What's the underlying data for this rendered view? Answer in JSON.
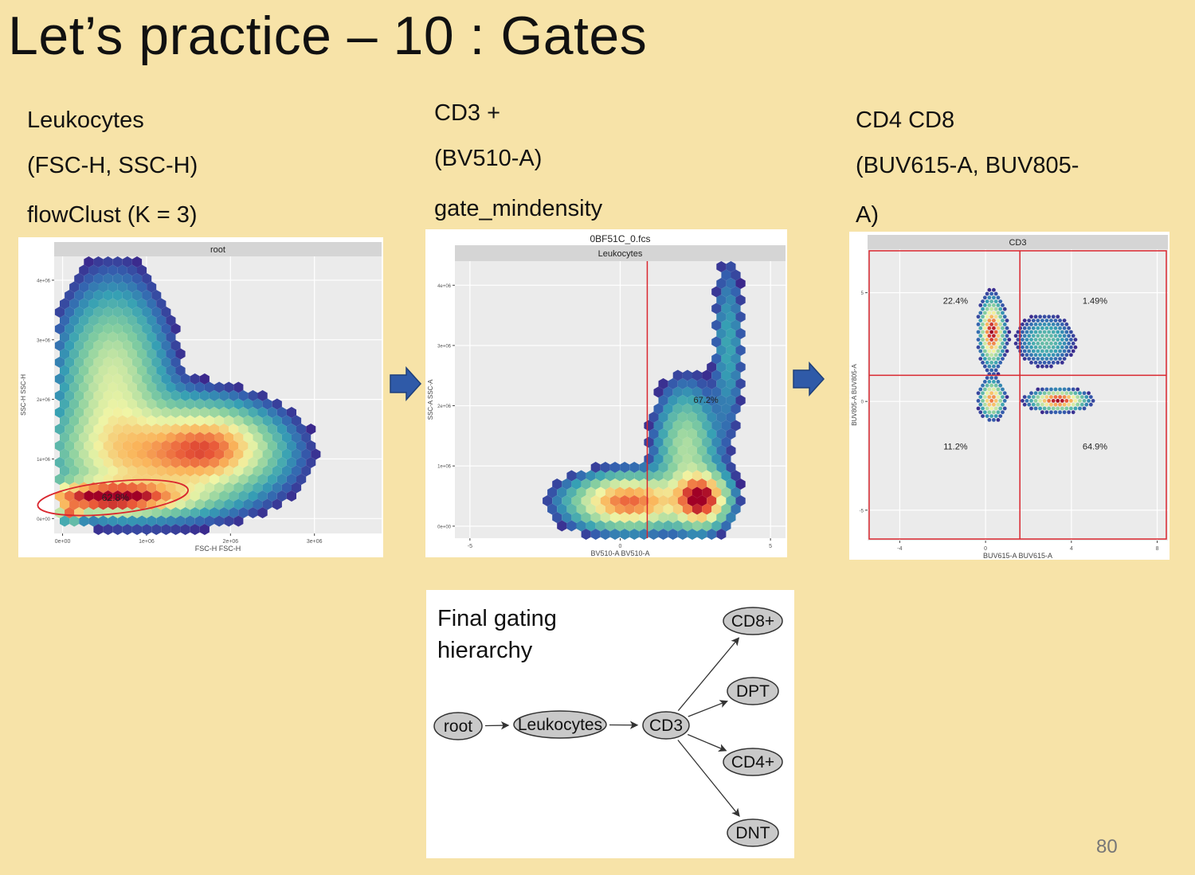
{
  "slide": {
    "title": "Let’s practice – 10 : Gates",
    "page_number": "80",
    "captions": [
      {
        "lines": [
          "Leukocytes",
          "(FSC-H, SSC-H)",
          "flowClust (K = 3)"
        ]
      },
      {
        "lines": [
          "CD3 +",
          "(BV510-A)",
          "gate_mindensity"
        ]
      },
      {
        "lines": [
          "CD4 CD8",
          "(BUV615-A, BUV805-",
          "A)"
        ]
      }
    ],
    "arrow_color": "#2f5aa8"
  },
  "chart_data": [
    {
      "type": "scatter",
      "subtype": "hexbin-density",
      "strip": "root",
      "xlabel": "FSC-H FSC-H",
      "ylabel": "SSC-H SSC-H",
      "xlim": [
        -0.1,
        3.8
      ],
      "ylim": [
        -0.25,
        4.4
      ],
      "x_ticks": [
        {
          "v": 0,
          "label": "0e+00"
        },
        {
          "v": 1,
          "label": "1e+06"
        },
        {
          "v": 2,
          "label": "2e+06"
        },
        {
          "v": 3,
          "label": "3e+06"
        }
      ],
      "y_ticks": [
        {
          "v": 0,
          "label": "0e+00"
        },
        {
          "v": 1,
          "label": "1e+06"
        },
        {
          "v": 2,
          "label": "2e+06"
        },
        {
          "v": 3,
          "label": "3e+06"
        },
        {
          "v": 4,
          "label": "4e+06"
        }
      ],
      "gate": {
        "type": "ellipse",
        "center": [
          0.6,
          0.35
        ],
        "rx": 0.9,
        "ry": 0.27,
        "color": "#d9262e",
        "label": "62.8%"
      },
      "density_clusters": [
        {
          "x": 0.55,
          "y": 0.35,
          "sx": 0.55,
          "sy": 0.15,
          "w": 1.0
        },
        {
          "x": 1.2,
          "y": 1.05,
          "sx": 0.7,
          "sy": 0.5,
          "w": 0.55
        },
        {
          "x": 0.6,
          "y": 2.3,
          "sx": 0.35,
          "sy": 0.9,
          "w": 0.35
        },
        {
          "x": 1.8,
          "y": 1.2,
          "sx": 0.4,
          "sy": 0.35,
          "w": 0.45
        },
        {
          "x": 0.1,
          "y": 0.1,
          "sx": 0.08,
          "sy": 0.08,
          "w": 0.6
        }
      ]
    },
    {
      "type": "scatter",
      "subtype": "hexbin-density",
      "title": "0BF51C_0.fcs",
      "strip": "Leukocytes",
      "xlabel": "BV510-A BV510-A",
      "ylabel": "SSC-A SSC-A",
      "xlim": [
        -5.5,
        5.5
      ],
      "ylim": [
        -0.2,
        4.4
      ],
      "x_ticks": [
        {
          "v": -5,
          "label": "-5"
        },
        {
          "v": 0,
          "label": "0"
        },
        {
          "v": 5,
          "label": "5"
        }
      ],
      "y_ticks": [
        {
          "v": 0,
          "label": "0e+00"
        },
        {
          "v": 1,
          "label": "1e+06"
        },
        {
          "v": 2,
          "label": "2e+06"
        },
        {
          "v": 3,
          "label": "3e+06"
        },
        {
          "v": 4,
          "label": "4e+06"
        }
      ],
      "gate": {
        "type": "vline",
        "x": 0.9,
        "color": "#d9262e",
        "label": "67.2%"
      },
      "density_clusters": [
        {
          "x": 0.3,
          "y": 0.4,
          "sx": 1.1,
          "sy": 0.25,
          "w": 0.8
        },
        {
          "x": 2.7,
          "y": 0.45,
          "sx": 0.5,
          "sy": 0.25,
          "w": 1.0
        },
        {
          "x": 2.2,
          "y": 1.3,
          "sx": 0.6,
          "sy": 0.6,
          "w": 0.3
        },
        {
          "x": 3.6,
          "y": 3.0,
          "sx": 0.3,
          "sy": 0.9,
          "w": 0.12
        }
      ]
    },
    {
      "type": "scatter",
      "subtype": "density-dots",
      "strip": "CD3",
      "xlabel": "BUV615-A BUV615-A",
      "ylabel": "BUV805-A BUV805-A",
      "xlim": [
        -5.5,
        8.5
      ],
      "ylim": [
        -6.4,
        7.0
      ],
      "x_ticks": [
        {
          "v": -4,
          "label": "-4"
        },
        {
          "v": 0,
          "label": "0"
        },
        {
          "v": 4,
          "label": "4"
        },
        {
          "v": 8,
          "label": "8"
        }
      ],
      "y_ticks": [
        {
          "v": -5,
          "label": "-5"
        },
        {
          "v": 0,
          "label": "0"
        },
        {
          "v": 5,
          "label": "5"
        }
      ],
      "gate": {
        "type": "quadrant",
        "x": 1.6,
        "y": 1.2,
        "color": "#d9262e"
      },
      "quadrant_labels": [
        {
          "label": "22.4%",
          "x": -1.4,
          "y": 4.5
        },
        {
          "label": "1.49%",
          "x": 5.1,
          "y": 4.5
        },
        {
          "label": "11.2%",
          "x": -1.4,
          "y": -2.2
        },
        {
          "label": "64.9%",
          "x": 5.1,
          "y": -2.2
        }
      ],
      "density_clusters": [
        {
          "x": 0.3,
          "y": 3.2,
          "sx": 0.3,
          "sy": 0.8,
          "w": 1.0
        },
        {
          "x": 0.3,
          "y": 0.1,
          "sx": 0.3,
          "sy": 0.45,
          "w": 0.8
        },
        {
          "x": 3.4,
          "y": 0.05,
          "sx": 0.7,
          "sy": 0.25,
          "w": 1.0
        },
        {
          "x": 2.8,
          "y": 2.8,
          "sx": 0.8,
          "sy": 0.7,
          "w": 0.25
        }
      ]
    },
    {
      "type": "diagram",
      "title_lines": [
        "Final gating",
        "hierarchy"
      ],
      "nodes": [
        "root",
        "Leukocytes",
        "CD3",
        "CD8+",
        "DPT",
        "CD4+",
        "DNT"
      ],
      "edges": [
        [
          "root",
          "Leukocytes"
        ],
        [
          "Leukocytes",
          "CD3"
        ],
        [
          "CD3",
          "CD8+"
        ],
        [
          "CD3",
          "DPT"
        ],
        [
          "CD3",
          "CD4+"
        ],
        [
          "CD3",
          "DNT"
        ]
      ]
    }
  ]
}
